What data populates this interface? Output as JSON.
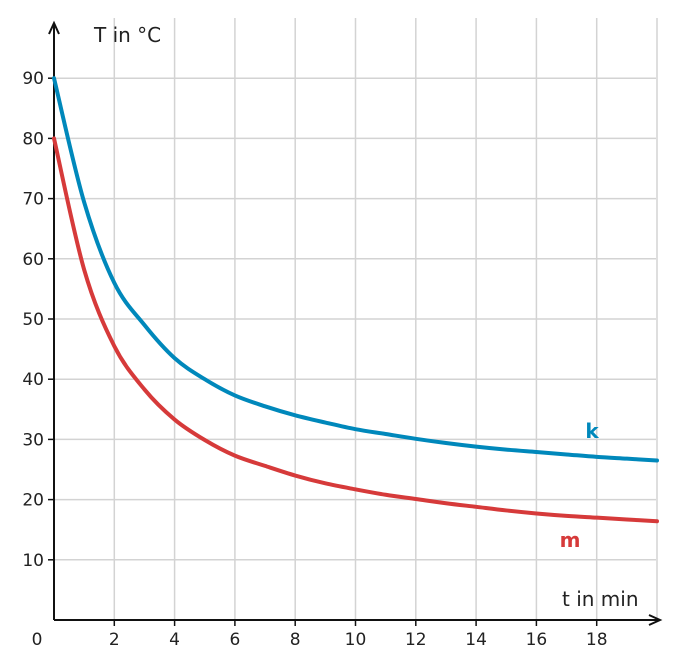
{
  "chart_data": {
    "type": "line",
    "xlabel": "t in min",
    "ylabel": "T in °C",
    "origin_label": "0",
    "xlim": [
      0,
      20
    ],
    "ylim": [
      0,
      100
    ],
    "xticks": [
      2,
      4,
      6,
      8,
      10,
      12,
      14,
      16,
      18
    ],
    "yticks": [
      10,
      20,
      30,
      40,
      50,
      60,
      70,
      80,
      90
    ],
    "grid": true,
    "series": [
      {
        "name": "k",
        "color": "#0088bb",
        "x": [
          0,
          1,
          2,
          3,
          4,
          5,
          6,
          7,
          8,
          9,
          10,
          11,
          12,
          13,
          14,
          15,
          16,
          17,
          18,
          19,
          20
        ],
        "y": [
          90,
          69.4,
          56,
          49,
          43.5,
          40,
          37.3,
          35.5,
          34,
          32.8,
          31.7,
          30.9,
          30.1,
          29.4,
          28.8,
          28.3,
          27.9,
          27.5,
          27.1,
          26.8,
          26.5
        ]
      },
      {
        "name": "m",
        "color": "#d63a3a",
        "x": [
          0,
          1,
          2,
          3,
          4,
          5,
          6,
          7,
          8,
          9,
          10,
          11,
          12,
          13,
          14,
          15,
          16,
          17,
          18,
          19,
          20
        ],
        "y": [
          80,
          58.2,
          45.5,
          38.3,
          33.3,
          29.9,
          27.3,
          25.6,
          24,
          22.7,
          21.7,
          20.8,
          20.1,
          19.4,
          18.8,
          18.2,
          17.7,
          17.3,
          17,
          16.7,
          16.4
        ]
      }
    ]
  }
}
